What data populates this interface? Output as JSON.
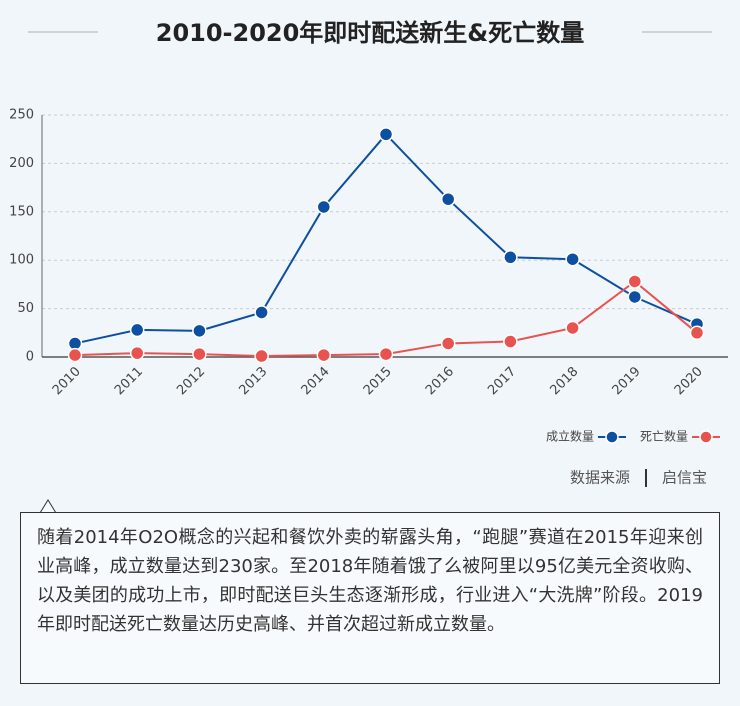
{
  "chart_data": {
    "type": "line",
    "title": "2010-2020年即时配送新生&死亡数量",
    "categories": [
      "2010",
      "2011",
      "2012",
      "2013",
      "2014",
      "2015",
      "2016",
      "2017",
      "2018",
      "2019",
      "2020"
    ],
    "series": [
      {
        "name": "成立数量",
        "color": "#0d4fa0",
        "values": [
          14,
          28,
          27,
          46,
          155,
          230,
          163,
          103,
          101,
          62,
          34
        ]
      },
      {
        "name": "死亡数量",
        "color": "#e8524f",
        "values": [
          2,
          4,
          3,
          1,
          2,
          3,
          14,
          16,
          30,
          78,
          25
        ]
      }
    ],
    "ylim": [
      0,
      250
    ],
    "yticks": [
      0,
      50,
      100,
      150,
      200,
      250
    ],
    "grid": true,
    "legend": "bottom-right",
    "source_label": "数据来源",
    "source": "启信宝",
    "note": "随着2014年O2O概念的兴起和餐饮外卖的崭露头角，“跑腿”赛道在2015年迎来创业高峰，成立数量达到230家。至2018年随着饿了么被阿里以95亿美元全资收购、以及美团的成功上市，即时配送巨头生态逐渐形成，行业进入“大洗牌”阶段。2019年即时配送死亡数量达历史高峰、并首次超过新成立数量。"
  }
}
